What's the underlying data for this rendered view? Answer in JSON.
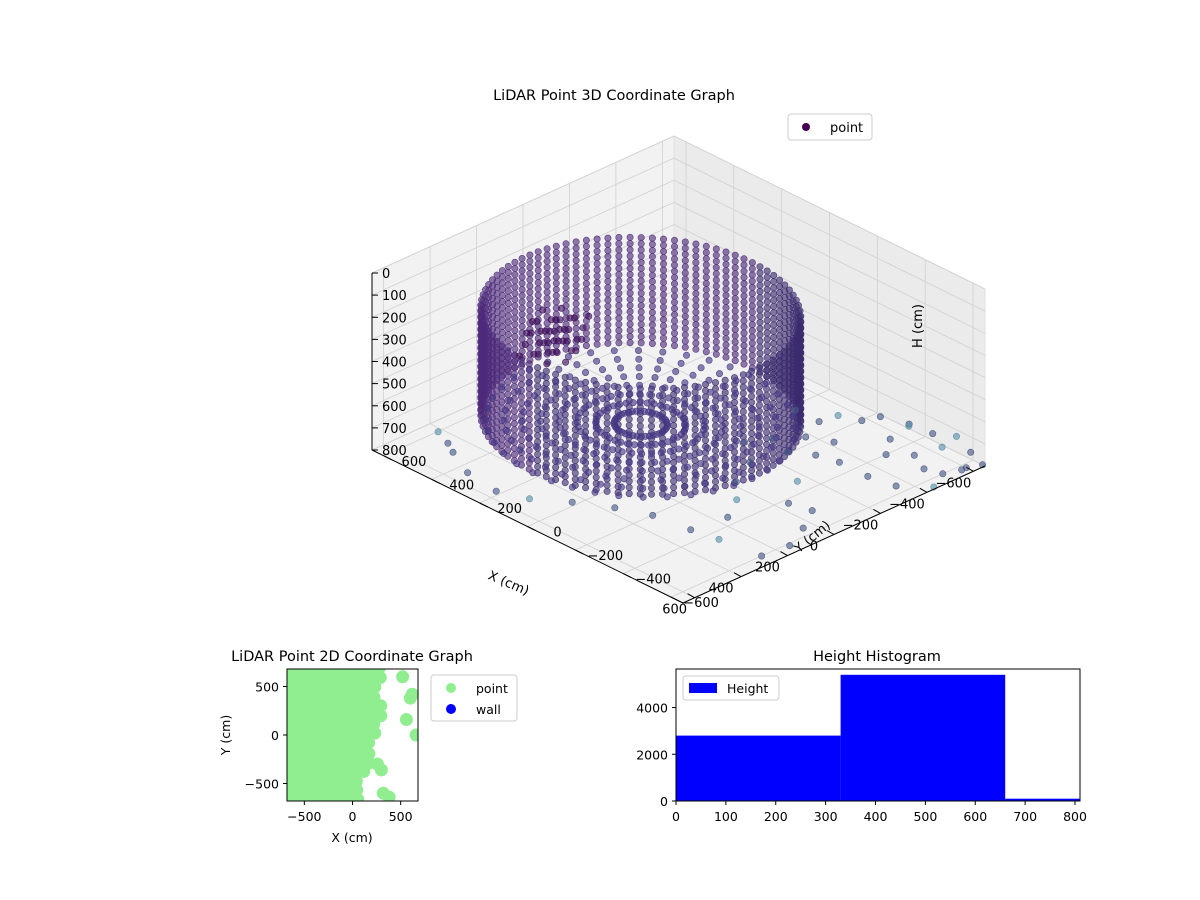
{
  "figure": {
    "background": "#ffffff"
  },
  "chart_data": [
    {
      "type": "scatter3d",
      "title": "LiDAR Point 3D Coordinate Graph",
      "xlabel": "X (cm)",
      "ylabel": "Y (cm)",
      "zlabel": "H (cm)",
      "x_ticks": [
        -600,
        -400,
        -200,
        0,
        200,
        400,
        600
      ],
      "y_ticks": [
        -600,
        -400,
        -200,
        0,
        200,
        400,
        600
      ],
      "z_ticks": [
        0,
        100,
        200,
        300,
        400,
        500,
        600,
        700,
        800
      ],
      "xlim": [
        -650,
        650
      ],
      "ylim": [
        -650,
        650
      ],
      "zlim": [
        0,
        800
      ],
      "z_inverted": true,
      "legend": {
        "entries": [
          "point"
        ],
        "placement": "upper right"
      },
      "colormap": "viridis",
      "marker_color": "#46337e",
      "structure_summary": {
        "ring_radius": 480,
        "ring_center": [
          80,
          80
        ],
        "wall_height_range": [
          150,
          650
        ],
        "floor_height": 650
      },
      "outlier_points": [
        [
          -620,
          -560,
          700
        ],
        [
          -600,
          -480,
          720
        ],
        [
          -560,
          -420,
          690
        ],
        [
          -520,
          -380,
          760
        ],
        [
          -480,
          -300,
          700
        ],
        [
          -440,
          -240,
          690
        ],
        [
          -420,
          -180,
          740
        ],
        [
          -380,
          -120,
          700
        ],
        [
          -650,
          -640,
          800
        ],
        [
          -640,
          -600,
          760
        ],
        [
          -620,
          -500,
          780
        ],
        [
          -600,
          -620,
          800
        ],
        [
          -560,
          -640,
          780
        ],
        [
          -520,
          -600,
          800
        ],
        [
          -480,
          -560,
          780
        ],
        [
          -440,
          -640,
          800
        ],
        [
          -300,
          -500,
          760
        ],
        [
          -260,
          -420,
          720
        ],
        [
          -220,
          -360,
          700
        ],
        [
          -160,
          -300,
          690
        ],
        [
          -100,
          -400,
          740
        ],
        [
          -40,
          -520,
          780
        ],
        [
          40,
          -560,
          800
        ],
        [
          160,
          -620,
          790
        ],
        [
          260,
          -600,
          800
        ],
        [
          320,
          -480,
          760
        ],
        [
          380,
          -420,
          720
        ],
        [
          420,
          -300,
          700
        ],
        [
          480,
          -200,
          690
        ],
        [
          540,
          -80,
          700
        ],
        [
          600,
          40,
          720
        ],
        [
          620,
          160,
          740
        ],
        [
          640,
          260,
          700
        ],
        [
          600,
          360,
          680
        ],
        [
          560,
          420,
          690
        ],
        [
          520,
          500,
          700
        ],
        [
          -200,
          -200,
          700
        ],
        [
          -120,
          -160,
          700
        ],
        [
          -60,
          -240,
          720
        ],
        [
          60,
          -300,
          720
        ],
        [
          120,
          -360,
          740
        ],
        [
          200,
          -400,
          760
        ],
        [
          0,
          -460,
          760
        ],
        [
          -360,
          -560,
          800
        ],
        [
          -560,
          -300,
          720
        ],
        [
          -600,
          -380,
          740
        ],
        [
          -500,
          -500,
          760
        ],
        [
          -420,
          -460,
          740
        ],
        [
          -340,
          -320,
          720
        ],
        [
          -280,
          -260,
          700
        ]
      ]
    },
    {
      "type": "scatter",
      "title": "LiDAR Point 2D Coordinate Graph",
      "xlabel": "X (cm)",
      "ylabel": "Y (cm)",
      "x_ticks": [
        -500,
        0,
        500
      ],
      "y_ticks": [
        -500,
        0,
        500
      ],
      "xlim": [
        -680,
        680
      ],
      "ylim": [
        -680,
        680
      ],
      "legend": {
        "entries": [
          "point",
          "wall"
        ],
        "placement": "outside right"
      },
      "series": [
        {
          "name": "point",
          "color": "#90ee90"
        },
        {
          "name": "wall",
          "color": "#0000ff"
        }
      ],
      "coverage_summary": "points fill the plane from x = -680 to about x = 300, plus scattered blobs near x = 600"
    },
    {
      "type": "bar",
      "title": "Height Histogram",
      "xlabel": "",
      "ylabel": "",
      "bins": [
        {
          "start": 0,
          "end": 330,
          "count": 2800
        },
        {
          "start": 330,
          "end": 660,
          "count": 5400
        },
        {
          "start": 660,
          "end": 810,
          "count": 100
        }
      ],
      "x_ticks": [
        0,
        100,
        200,
        300,
        400,
        500,
        600,
        700,
        800
      ],
      "y_ticks": [
        0,
        2000,
        4000
      ],
      "xlim": [
        0,
        810
      ],
      "ylim": [
        0,
        5650
      ],
      "legend": {
        "entries": [
          "Height"
        ],
        "placement": "upper left"
      },
      "bar_color": "#0000ff"
    }
  ]
}
